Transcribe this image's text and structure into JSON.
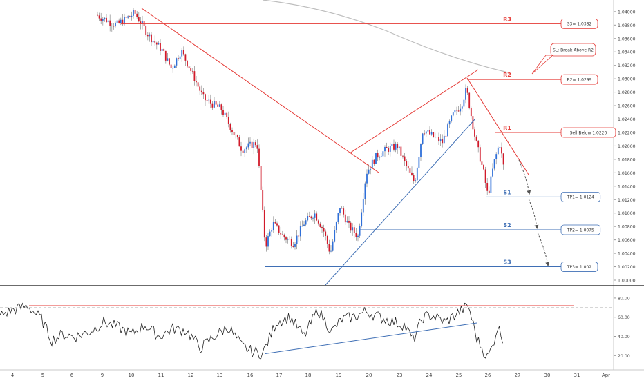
{
  "chart_data": {
    "type": "candlestick",
    "price_axis": {
      "min": 1.0,
      "max": 1.041,
      "step": 0.002,
      "tick_labels": [
        "1.04000",
        "1.03800",
        "1.03600",
        "1.03400",
        "1.03200",
        "1.03000",
        "1.02800",
        "1.02600",
        "1.02400",
        "1.02200",
        "1.02000",
        "1.01800",
        "1.01600",
        "1.01400",
        "1.01200",
        "1.01000",
        "1.00800",
        "1.00600",
        "1.00400",
        "1.00200",
        "1.00000"
      ]
    },
    "rsi_axis": {
      "min": 8,
      "max": 90,
      "tick_labels": [
        {
          "v": 80,
          "t": "80.00"
        },
        {
          "v": 60,
          "t": "60.00"
        },
        {
          "v": 40,
          "t": "40.00"
        },
        {
          "v": 20,
          "t": "20.00"
        }
      ],
      "reference_lines": [
        70,
        30
      ]
    },
    "time_axis": {
      "tick_labels": [
        "4",
        "5",
        "6",
        "9",
        "10",
        "11",
        "12",
        "13",
        "16",
        "17",
        "18",
        "19",
        "20",
        "23",
        "24",
        "25",
        "26",
        "27",
        "30",
        "31",
        "Apr"
      ]
    },
    "price_levels": [
      {
        "name": "R3",
        "value": 1.0382,
        "tag": "S3= 1.0382",
        "color": "#e53935"
      },
      {
        "name": "R2",
        "value": 1.0299,
        "tag": "R2= 1.0299",
        "color": "#e53935"
      },
      {
        "name": "R1",
        "value": 1.022,
        "tag": "Sell Below 1.0220",
        "color": "#e53935"
      },
      {
        "name": "S1",
        "value": 1.0124,
        "tag": "TP1= 1.0124",
        "color": "#3f6fb5"
      },
      {
        "name": "S2",
        "value": 1.0075,
        "tag": "TP2= 1.0075",
        "color": "#3f6fb5"
      },
      {
        "name": "S3",
        "value": 1.002,
        "tag": "TP3= 1.002",
        "color": "#3f6fb5"
      }
    ],
    "annotations": {
      "stop_loss": "SL: Break Above R2"
    },
    "colors": {
      "up_candle": "#2f6fd8",
      "down_candle": "#d11a2a",
      "resistance": "#e53935",
      "support": "#3f6fb5",
      "moving_average": "#bdbdbd",
      "rsi_line": "#222222",
      "projection_arrow": "#555555"
    },
    "grid": false
  }
}
